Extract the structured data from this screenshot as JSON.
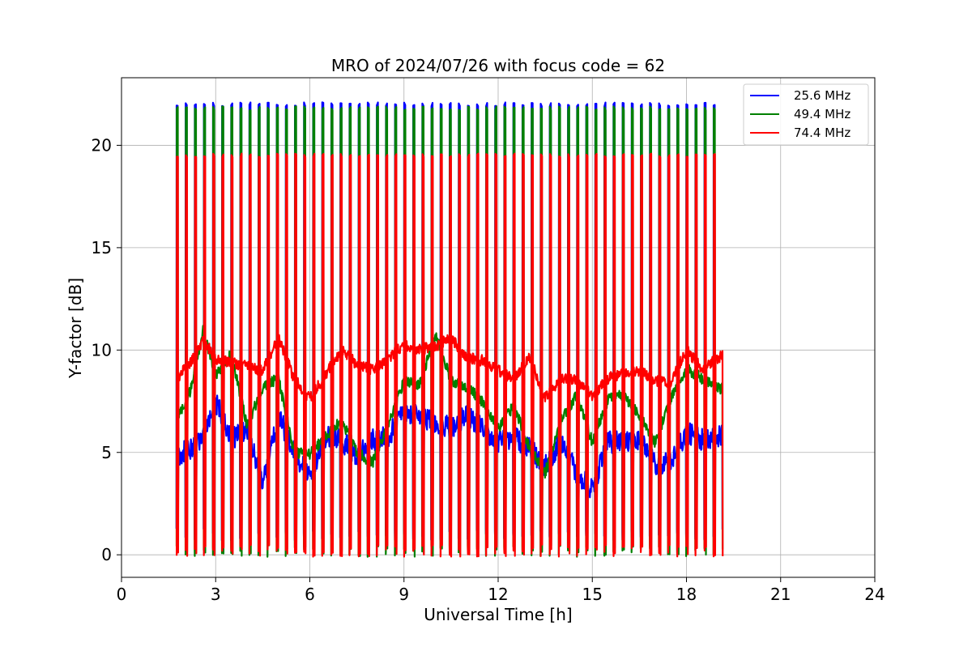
{
  "chart_data": {
    "type": "line",
    "title": "MRO of 2024/07/26 with focus code = 62",
    "xlabel": "Universal Time [h]",
    "ylabel": "Y-factor [dB]",
    "xlim": [
      0,
      24
    ],
    "ylim": [
      -1.1,
      23.3
    ],
    "xticks": [
      "0",
      "3",
      "6",
      "9",
      "12",
      "15",
      "18",
      "21",
      "24"
    ],
    "yticks": [
      "0",
      "5",
      "10",
      "15",
      "20"
    ],
    "grid": true,
    "legend_position": "top-right",
    "cycle_period_h": 0.29,
    "cycle_start_h": 1.75,
    "cycle_end_h": 19.1,
    "series": [
      {
        "name": "25.6 MHz",
        "color": "#0000ff",
        "peak_db": 22.0,
        "low_db": 1.0,
        "x": [
          1.75,
          2.5,
          3.0,
          3.5,
          4.0,
          4.5,
          5.0,
          5.5,
          6.0,
          6.5,
          7.0,
          7.5,
          8.0,
          8.5,
          9.0,
          9.5,
          10.0,
          10.5,
          11.0,
          11.5,
          12.0,
          12.5,
          13.0,
          13.5,
          14.0,
          14.5,
          15.0,
          15.5,
          16.0,
          16.5,
          17.0,
          17.5,
          18.0,
          18.5,
          19.1
        ],
        "y": [
          4.8,
          5.5,
          7.5,
          5.6,
          6.2,
          3.5,
          6.8,
          5.0,
          3.8,
          5.8,
          5.6,
          4.8,
          5.6,
          5.8,
          6.9,
          6.8,
          6.5,
          6.2,
          6.8,
          6.2,
          5.5,
          5.8,
          5.2,
          4.3,
          5.6,
          4.0,
          3.2,
          5.5,
          5.5,
          5.6,
          4.4,
          4.5,
          6.0,
          5.6,
          5.8
        ]
      },
      {
        "name": "49.4 MHz",
        "color": "#008000",
        "peak_db": 21.8,
        "low_db": 0.2,
        "x": [
          1.75,
          2.2,
          2.6,
          3.0,
          3.5,
          4.0,
          4.5,
          5.0,
          5.5,
          6.0,
          6.5,
          7.0,
          7.5,
          8.0,
          8.5,
          9.0,
          9.5,
          10.0,
          10.5,
          11.0,
          11.5,
          12.0,
          12.5,
          13.0,
          13.5,
          14.0,
          14.5,
          15.0,
          15.5,
          16.0,
          16.5,
          17.0,
          17.5,
          18.0,
          18.5,
          19.1
        ],
        "y": [
          6.6,
          8.0,
          11.0,
          8.8,
          9.8,
          6.3,
          8.2,
          8.6,
          5.0,
          4.9,
          5.8,
          6.6,
          5.0,
          4.5,
          6.4,
          8.5,
          8.3,
          10.8,
          8.5,
          8.2,
          7.5,
          6.2,
          7.3,
          5.2,
          4.0,
          6.5,
          7.8,
          5.5,
          7.6,
          7.8,
          6.8,
          5.5,
          7.6,
          9.1,
          8.6,
          8.1
        ]
      },
      {
        "name": "74.4 MHz",
        "color": "#ff0000",
        "peak_db": 19.5,
        "low_db": 0.2,
        "x": [
          1.75,
          2.2,
          2.6,
          3.0,
          3.5,
          4.0,
          4.5,
          5.0,
          5.5,
          6.0,
          6.5,
          7.0,
          7.5,
          8.0,
          8.5,
          9.0,
          9.5,
          10.0,
          10.5,
          11.0,
          11.5,
          12.0,
          12.5,
          13.0,
          13.5,
          14.0,
          14.5,
          15.0,
          15.5,
          16.0,
          16.5,
          17.0,
          17.5,
          18.0,
          18.5,
          19.1
        ],
        "y": [
          8.6,
          9.4,
          10.5,
          9.6,
          9.4,
          9.2,
          9.0,
          10.6,
          8.6,
          7.6,
          8.8,
          10.0,
          9.3,
          9.0,
          9.6,
          10.3,
          10.0,
          10.2,
          10.6,
          9.6,
          9.5,
          9.0,
          8.6,
          9.6,
          7.7,
          8.6,
          8.5,
          7.8,
          8.6,
          8.9,
          9.0,
          8.5,
          8.4,
          10.0,
          9.1,
          9.7
        ]
      }
    ]
  }
}
